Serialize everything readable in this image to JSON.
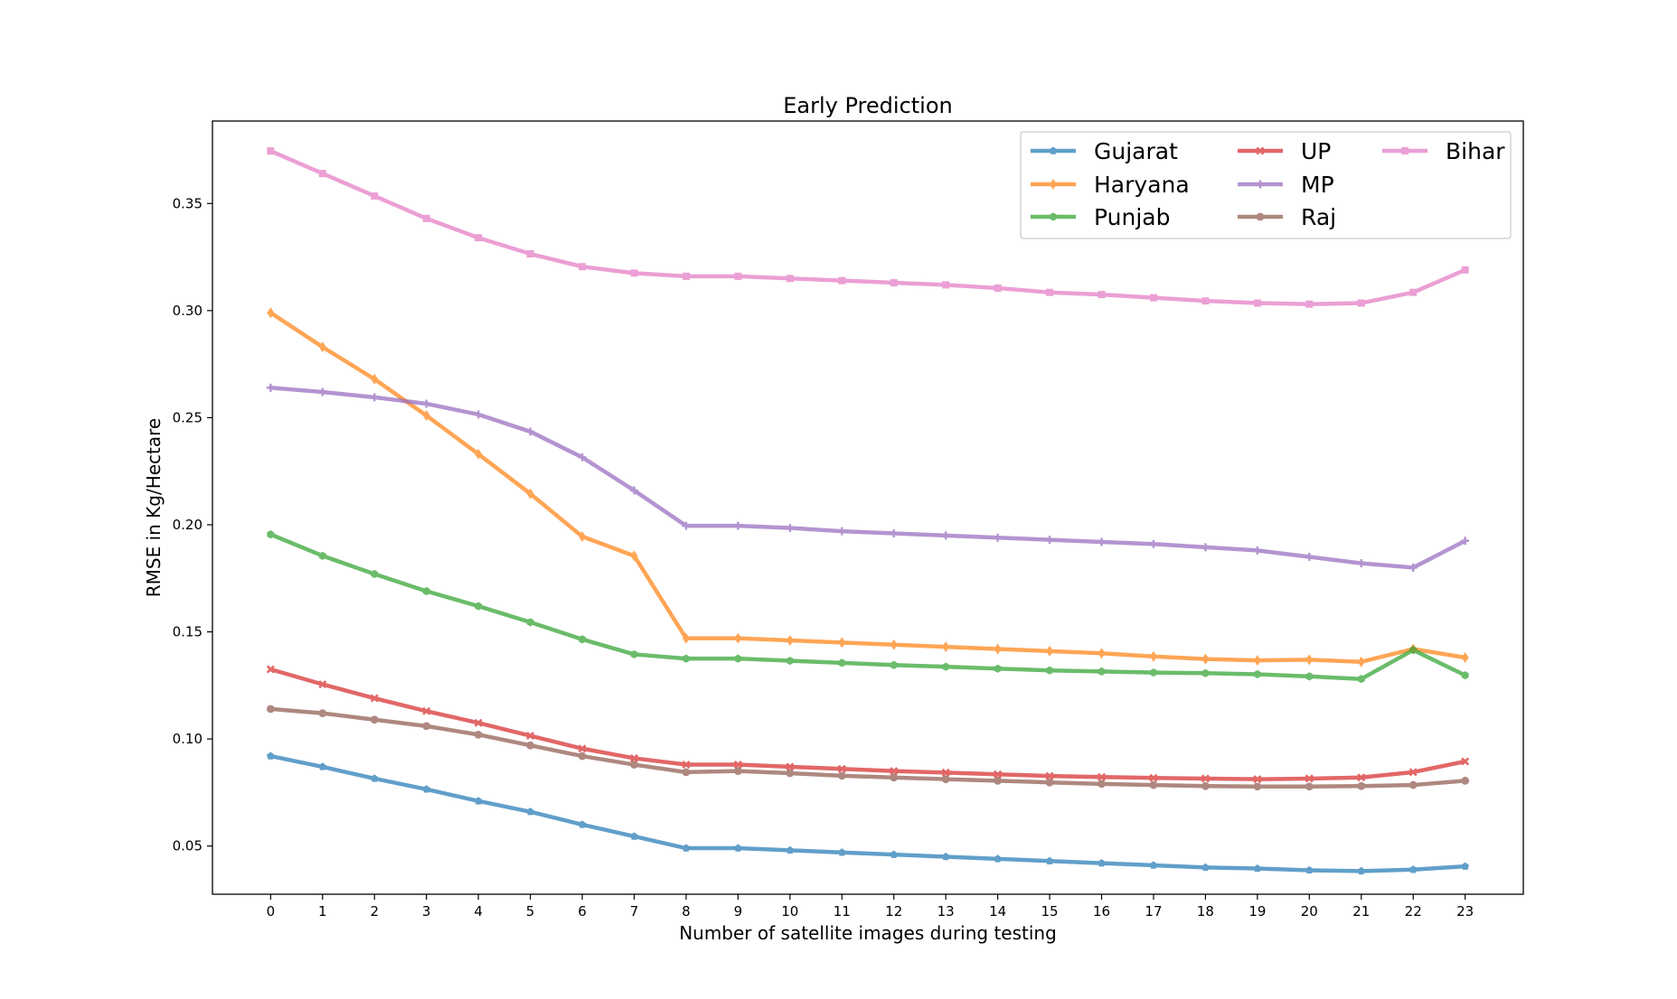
{
  "chart_data": {
    "type": "line",
    "title": "Early Prediction",
    "xlabel": "Number of satellite images during testing",
    "ylabel": "RMSE in Kg/Hectare",
    "x": [
      0,
      1,
      2,
      3,
      4,
      5,
      6,
      7,
      8,
      9,
      10,
      11,
      12,
      13,
      14,
      15,
      16,
      17,
      18,
      19,
      20,
      21,
      22,
      23
    ],
    "xlim": [
      -1.12,
      24.12
    ],
    "ylim": [
      0.0275,
      0.3885
    ],
    "yticks": [
      0.05,
      0.1,
      0.15,
      0.2,
      0.25,
      0.3,
      0.35
    ],
    "ytick_labels": [
      "0.05",
      "0.10",
      "0.15",
      "0.20",
      "0.25",
      "0.30",
      "0.35"
    ],
    "grid": false,
    "legend_position": "top-right",
    "legend_columns": 3,
    "series": [
      {
        "name": "Gujarat",
        "color": "#1f77b4",
        "marker": "pentagon",
        "values": [
          0.092,
          0.087,
          0.0815,
          0.0765,
          0.071,
          0.066,
          0.06,
          0.0545,
          0.049,
          0.049,
          0.048,
          0.047,
          0.046,
          0.045,
          0.044,
          0.043,
          0.042,
          0.041,
          0.04,
          0.0395,
          0.0387,
          0.0383,
          0.039,
          0.0405
        ]
      },
      {
        "name": "Haryana",
        "color": "#ff7f0e",
        "marker": "diamond",
        "values": [
          0.299,
          0.283,
          0.268,
          0.251,
          0.233,
          0.2145,
          0.1945,
          0.1855,
          0.147,
          0.147,
          0.146,
          0.145,
          0.144,
          0.143,
          0.142,
          0.141,
          0.14,
          0.1385,
          0.1373,
          0.1367,
          0.137,
          0.136,
          0.142,
          0.138
        ]
      },
      {
        "name": "Punjab",
        "color": "#2ca02c",
        "marker": "hexagon",
        "values": [
          0.1955,
          0.1855,
          0.177,
          0.169,
          0.162,
          0.1545,
          0.1465,
          0.1395,
          0.1375,
          0.1375,
          0.1365,
          0.1355,
          0.1345,
          0.1337,
          0.1328,
          0.132,
          0.1315,
          0.131,
          0.1307,
          0.1302,
          0.1292,
          0.128,
          0.1415,
          0.1297
        ]
      },
      {
        "name": "UP",
        "color": "#d62728",
        "marker": "x",
        "values": [
          0.1325,
          0.1255,
          0.119,
          0.113,
          0.1075,
          0.1015,
          0.0955,
          0.091,
          0.088,
          0.088,
          0.087,
          0.086,
          0.085,
          0.0843,
          0.0835,
          0.0827,
          0.0822,
          0.0818,
          0.0815,
          0.0812,
          0.0815,
          0.082,
          0.0845,
          0.0895
        ]
      },
      {
        "name": "MP",
        "color": "#9467bd",
        "marker": "plus",
        "values": [
          0.264,
          0.262,
          0.2595,
          0.2565,
          0.2515,
          0.2435,
          0.2315,
          0.216,
          0.1995,
          0.1995,
          0.1985,
          0.197,
          0.196,
          0.195,
          0.194,
          0.193,
          0.192,
          0.191,
          0.1895,
          0.188,
          0.185,
          0.182,
          0.18,
          0.1925
        ]
      },
      {
        "name": "Raj",
        "color": "#8c564b",
        "marker": "circle",
        "values": [
          0.114,
          0.112,
          0.109,
          0.106,
          0.102,
          0.097,
          0.092,
          0.088,
          0.0845,
          0.085,
          0.084,
          0.0828,
          0.082,
          0.0812,
          0.0805,
          0.0797,
          0.079,
          0.0785,
          0.078,
          0.0778,
          0.0778,
          0.078,
          0.0785,
          0.0805
        ]
      },
      {
        "name": "Bihar",
        "color": "#e377c2",
        "marker": "square",
        "values": [
          0.3745,
          0.364,
          0.3535,
          0.343,
          0.334,
          0.3265,
          0.3205,
          0.3175,
          0.316,
          0.316,
          0.315,
          0.314,
          0.313,
          0.312,
          0.3105,
          0.3085,
          0.3075,
          0.306,
          0.3045,
          0.3035,
          0.303,
          0.3035,
          0.3085,
          0.319
        ]
      }
    ]
  }
}
